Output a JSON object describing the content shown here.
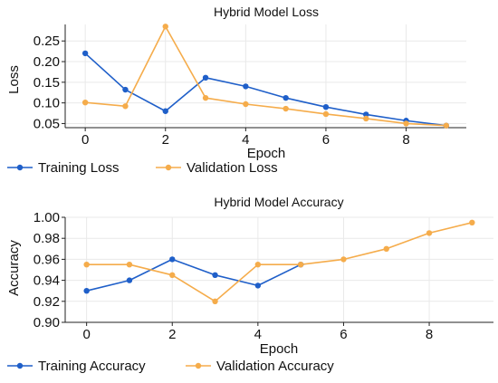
{
  "chart_data": [
    {
      "type": "line",
      "title": "Hybrid Model Loss",
      "xlabel": "Epoch",
      "ylabel": "Loss",
      "x": [
        0,
        1,
        2,
        3,
        4,
        5,
        6,
        7,
        8,
        9
      ],
      "xlim": [
        -0.5,
        9.5
      ],
      "ylim": [
        0.04,
        0.29
      ],
      "xticks": [
        0,
        2,
        4,
        6,
        8
      ],
      "yticks": [
        0.05,
        0.1,
        0.15,
        0.2,
        0.25
      ],
      "ytick_labels": [
        "0.05",
        "0.10",
        "0.15",
        "0.20",
        "0.25"
      ],
      "grid": true,
      "legend_position": "bottom",
      "series": [
        {
          "name": "Training Loss",
          "color": "#1f5fc9",
          "values": [
            0.22,
            0.132,
            0.08,
            0.161,
            0.14,
            0.112,
            0.09,
            0.072,
            0.057,
            0.045
          ]
        },
        {
          "name": "Validation Loss",
          "color": "#f5ac4b",
          "values": [
            0.101,
            0.092,
            0.285,
            0.112,
            0.097,
            0.086,
            0.073,
            0.062,
            0.05,
            0.045
          ]
        }
      ]
    },
    {
      "type": "line",
      "title": "Hybrid Model Accuracy",
      "xlabel": "Epoch",
      "ylabel": "Accuracy",
      "x": [
        0,
        1,
        2,
        3,
        4,
        5,
        6,
        7,
        8,
        9
      ],
      "xlim": [
        -0.5,
        9.5
      ],
      "ylim": [
        0.9,
        1.0
      ],
      "xticks": [
        0,
        2,
        4,
        6,
        8
      ],
      "yticks": [
        0.9,
        0.92,
        0.94,
        0.96,
        0.98,
        1.0
      ],
      "ytick_labels": [
        "0.90",
        "0.92",
        "0.94",
        "0.96",
        "0.98",
        "1.00"
      ],
      "grid": true,
      "legend_position": "bottom",
      "series": [
        {
          "name": "Training Accuracy",
          "color": "#1f5fc9",
          "values": [
            0.93,
            0.94,
            0.96,
            0.945,
            0.935,
            0.955,
            null,
            null,
            null,
            null
          ]
        },
        {
          "name": "Validation Accuracy",
          "color": "#f5ac4b",
          "values": [
            0.955,
            0.955,
            0.945,
            0.92,
            0.955,
            0.955,
            0.96,
            0.97,
            0.985,
            0.995
          ]
        }
      ]
    }
  ]
}
